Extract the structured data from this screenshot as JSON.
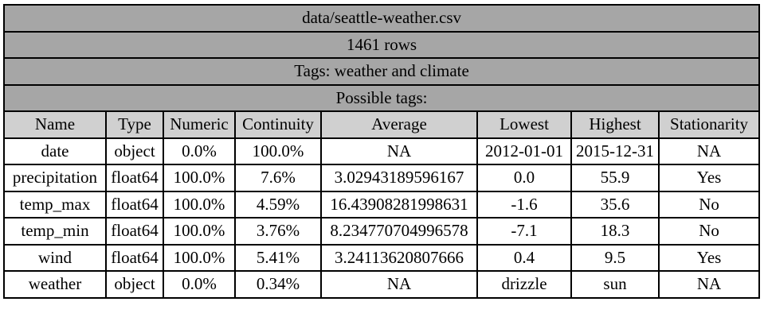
{
  "table": {
    "file": "data/seattle-weather.csv",
    "rows_label": "1461 rows",
    "tags_label": "Tags: weather and climate",
    "possible_tags_label": "Possible tags:",
    "headers": [
      "Name",
      "Type",
      "Numeric",
      "Continuity",
      "Average",
      "Lowest",
      "Highest",
      "Stationarity"
    ],
    "rows": [
      [
        "date",
        "object",
        "0.0%",
        "100.0%",
        "NA",
        "2012-01-01",
        "2015-12-31",
        "NA"
      ],
      [
        "precipitation",
        "float64",
        "100.0%",
        "7.6%",
        "3.02943189596167",
        "0.0",
        "55.9",
        "Yes"
      ],
      [
        "temp_max",
        "float64",
        "100.0%",
        "4.59%",
        "16.43908281998631",
        "-1.6",
        "35.6",
        "No"
      ],
      [
        "temp_min",
        "float64",
        "100.0%",
        "3.76%",
        "8.234770704996578",
        "-7.1",
        "18.3",
        "No"
      ],
      [
        "wind",
        "float64",
        "100.0%",
        "5.41%",
        "3.24113620807666",
        "0.4",
        "9.5",
        "Yes"
      ],
      [
        "weather",
        "object",
        "0.0%",
        "0.34%",
        "NA",
        "drizzle",
        "sun",
        "NA"
      ]
    ]
  },
  "colors": {
    "banner_bg": "#a6a6a6",
    "header_bg": "#d0d0d0",
    "cell_bg": "#ffffff",
    "border": "#000000"
  }
}
